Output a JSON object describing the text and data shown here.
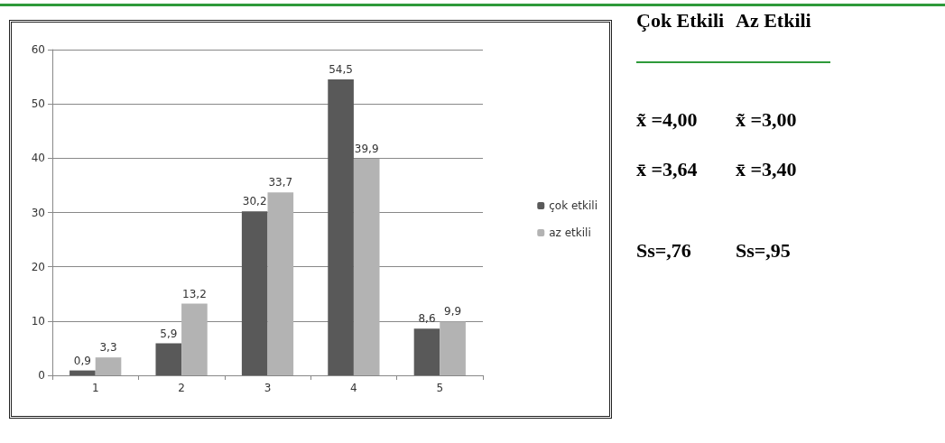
{
  "chart_data": [
    {
      "type": "bar",
      "categories": [
        "1",
        "2",
        "3",
        "4",
        "5"
      ],
      "series": [
        {
          "name": "çok etkili",
          "color": "#595959",
          "values": [
            0.9,
            5.9,
            30.2,
            54.5,
            8.6
          ],
          "value_labels": [
            "0,9",
            "5,9",
            "30,2",
            "54,5",
            "8,6"
          ]
        },
        {
          "name": "az etkili",
          "color": "#b3b3b3",
          "values": [
            3.3,
            13.2,
            33.7,
            39.9,
            9.9
          ],
          "value_labels": [
            "3,3",
            "13,2",
            "33,7",
            "39,9",
            "9,9"
          ]
        }
      ],
      "ylim": [
        0,
        60
      ],
      "yticks": [
        0,
        10,
        20,
        30,
        40,
        50,
        60
      ],
      "grid": "y",
      "legend": "right"
    },
    {
      "type": "other",
      "annotations": [
        "Çok Etkili",
        "Az Etkili",
        "x̃ =4,00",
        "x̃ =3,00",
        "x̄ =3,64",
        "x̄ =3,40",
        "Ss=,76",
        "Ss=,95"
      ]
    }
  ]
}
